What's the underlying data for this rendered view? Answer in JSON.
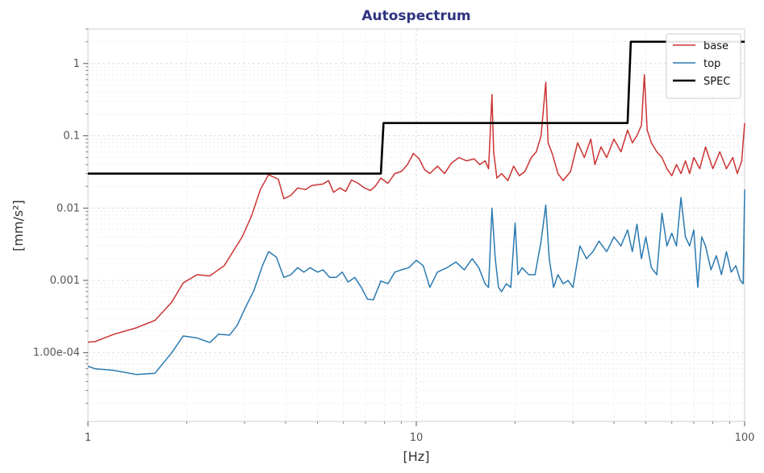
{
  "chart_data": {
    "type": "line",
    "title": "Autospectrum",
    "xlabel": "[Hz]",
    "ylabel": "[mm/s²]",
    "xscale": "log",
    "yscale": "log",
    "xlim": [
      1,
      100
    ],
    "ylim": [
      1.12e-05,
      3.0
    ],
    "grid": true,
    "legend": "top-right",
    "x_ticks": [
      {
        "value": 1,
        "label": "1"
      },
      {
        "value": 10,
        "label": "10"
      },
      {
        "value": 100,
        "label": "100"
      }
    ],
    "y_ticks": [
      {
        "value": 1,
        "label": "1"
      },
      {
        "value": 0.1,
        "label": "0.1"
      },
      {
        "value": 0.01,
        "label": "0.01"
      },
      {
        "value": 0.001,
        "label": "0.001"
      },
      {
        "value": 0.0001,
        "label": "1.00e-04"
      }
    ],
    "series": [
      {
        "name": "base",
        "color": "#cc3333",
        "points": [
          [
            1.0,
            0.00014
          ],
          [
            1.05,
            0.000142
          ],
          [
            1.2,
            0.00018
          ],
          [
            1.4,
            0.00022
          ],
          [
            1.6,
            0.00028
          ],
          [
            1.8,
            0.0005
          ],
          [
            1.95,
            0.00092
          ],
          [
            2.15,
            0.0012
          ],
          [
            2.35,
            0.00115
          ],
          [
            2.6,
            0.0016
          ],
          [
            2.75,
            0.0024
          ],
          [
            2.95,
            0.004
          ],
          [
            3.15,
            0.0078
          ],
          [
            3.35,
            0.018
          ],
          [
            3.55,
            0.029
          ],
          [
            3.8,
            0.025
          ],
          [
            3.95,
            0.0135
          ],
          [
            4.15,
            0.015
          ],
          [
            4.35,
            0.019
          ],
          [
            4.6,
            0.018
          ],
          [
            4.8,
            0.0205
          ],
          [
            5.0,
            0.021
          ],
          [
            5.2,
            0.0215
          ],
          [
            5.4,
            0.024
          ],
          [
            5.6,
            0.0165
          ],
          [
            5.85,
            0.019
          ],
          [
            6.1,
            0.017
          ],
          [
            6.35,
            0.0245
          ],
          [
            6.65,
            0.022
          ],
          [
            6.95,
            0.019
          ],
          [
            7.25,
            0.0175
          ],
          [
            7.5,
            0.02
          ],
          [
            7.8,
            0.026
          ],
          [
            8.2,
            0.022
          ],
          [
            8.6,
            0.03
          ],
          [
            9.0,
            0.032
          ],
          [
            9.4,
            0.04
          ],
          [
            9.8,
            0.057
          ],
          [
            10.2,
            0.048
          ],
          [
            10.6,
            0.034
          ],
          [
            11.0,
            0.03
          ],
          [
            11.6,
            0.038
          ],
          [
            12.2,
            0.03
          ],
          [
            12.8,
            0.042
          ],
          [
            13.5,
            0.05
          ],
          [
            14.2,
            0.045
          ],
          [
            15.0,
            0.048
          ],
          [
            15.6,
            0.04
          ],
          [
            16.2,
            0.045
          ],
          [
            16.6,
            0.035
          ],
          [
            17.0,
            0.37
          ],
          [
            17.2,
            0.06
          ],
          [
            17.6,
            0.026
          ],
          [
            18.2,
            0.03
          ],
          [
            19.0,
            0.024
          ],
          [
            19.8,
            0.038
          ],
          [
            20.6,
            0.028
          ],
          [
            21.4,
            0.032
          ],
          [
            22.4,
            0.05
          ],
          [
            23.2,
            0.06
          ],
          [
            24.0,
            0.1
          ],
          [
            24.8,
            0.55
          ],
          [
            25.2,
            0.08
          ],
          [
            26.0,
            0.055
          ],
          [
            27.0,
            0.03
          ],
          [
            28.0,
            0.024
          ],
          [
            29.5,
            0.032
          ],
          [
            31.0,
            0.08
          ],
          [
            32.5,
            0.05
          ],
          [
            34.0,
            0.09
          ],
          [
            35.0,
            0.04
          ],
          [
            36.5,
            0.07
          ],
          [
            38.0,
            0.05
          ],
          [
            40.0,
            0.09
          ],
          [
            42.0,
            0.06
          ],
          [
            44.0,
            0.12
          ],
          [
            45.5,
            0.08
          ],
          [
            47.0,
            0.1
          ],
          [
            48.5,
            0.14
          ],
          [
            49.5,
            0.7
          ],
          [
            50.5,
            0.12
          ],
          [
            52.0,
            0.08
          ],
          [
            54.0,
            0.06
          ],
          [
            56.0,
            0.05
          ],
          [
            58.0,
            0.035
          ],
          [
            60.0,
            0.028
          ],
          [
            62.0,
            0.04
          ],
          [
            64.0,
            0.03
          ],
          [
            66.0,
            0.045
          ],
          [
            68.0,
            0.03
          ],
          [
            70.0,
            0.05
          ],
          [
            73.0,
            0.035
          ],
          [
            76.0,
            0.07
          ],
          [
            80.0,
            0.035
          ],
          [
            84.0,
            0.06
          ],
          [
            88.0,
            0.035
          ],
          [
            92.0,
            0.05
          ],
          [
            95.0,
            0.03
          ],
          [
            98.0,
            0.045
          ],
          [
            100.0,
            0.15
          ]
        ]
      },
      {
        "name": "top",
        "color": "#2a7ab0",
        "points": [
          [
            1.0,
            6.5e-05
          ],
          [
            1.05,
            6e-05
          ],
          [
            1.2,
            5.7e-05
          ],
          [
            1.4,
            5e-05
          ],
          [
            1.6,
            5.2e-05
          ],
          [
            1.8,
            0.0001
          ],
          [
            1.95,
            0.00017
          ],
          [
            2.15,
            0.00016
          ],
          [
            2.35,
            0.000138
          ],
          [
            2.5,
            0.00018
          ],
          [
            2.7,
            0.000175
          ],
          [
            2.85,
            0.00024
          ],
          [
            3.0,
            0.0004
          ],
          [
            3.2,
            0.00072
          ],
          [
            3.4,
            0.0016
          ],
          [
            3.55,
            0.0025
          ],
          [
            3.75,
            0.0021
          ],
          [
            3.95,
            0.0011
          ],
          [
            4.15,
            0.0012
          ],
          [
            4.35,
            0.0015
          ],
          [
            4.55,
            0.0013
          ],
          [
            4.75,
            0.0015
          ],
          [
            5.0,
            0.0013
          ],
          [
            5.2,
            0.0014
          ],
          [
            5.45,
            0.0011
          ],
          [
            5.7,
            0.0011
          ],
          [
            5.95,
            0.0013
          ],
          [
            6.2,
            0.00095
          ],
          [
            6.5,
            0.0011
          ],
          [
            6.8,
            0.0008
          ],
          [
            7.1,
            0.00055
          ],
          [
            7.4,
            0.00054
          ],
          [
            7.8,
            0.00098
          ],
          [
            8.2,
            0.0009
          ],
          [
            8.6,
            0.0013
          ],
          [
            9.0,
            0.0014
          ],
          [
            9.5,
            0.0015
          ],
          [
            10.0,
            0.0019
          ],
          [
            10.5,
            0.0016
          ],
          [
            11.0,
            0.0008
          ],
          [
            11.6,
            0.0013
          ],
          [
            12.4,
            0.0015
          ],
          [
            13.2,
            0.0018
          ],
          [
            14.0,
            0.0014
          ],
          [
            14.8,
            0.002
          ],
          [
            15.5,
            0.0015
          ],
          [
            16.2,
            0.0009
          ],
          [
            16.6,
            0.0008
          ],
          [
            17.0,
            0.01
          ],
          [
            17.4,
            0.002
          ],
          [
            17.8,
            0.0008
          ],
          [
            18.2,
            0.0007
          ],
          [
            18.8,
            0.0009
          ],
          [
            19.4,
            0.0008
          ],
          [
            20.0,
            0.0062
          ],
          [
            20.4,
            0.0012
          ],
          [
            21.0,
            0.0015
          ],
          [
            22.0,
            0.0012
          ],
          [
            23.0,
            0.0012
          ],
          [
            24.0,
            0.0035
          ],
          [
            24.8,
            0.011
          ],
          [
            25.4,
            0.002
          ],
          [
            26.2,
            0.0008
          ],
          [
            27.0,
            0.0012
          ],
          [
            28.0,
            0.0009
          ],
          [
            29.0,
            0.001
          ],
          [
            30.0,
            0.0008
          ],
          [
            31.5,
            0.003
          ],
          [
            33.0,
            0.002
          ],
          [
            34.5,
            0.0025
          ],
          [
            36.0,
            0.0035
          ],
          [
            38.0,
            0.0025
          ],
          [
            40.0,
            0.004
          ],
          [
            42.0,
            0.003
          ],
          [
            44.0,
            0.005
          ],
          [
            45.5,
            0.0025
          ],
          [
            47.0,
            0.006
          ],
          [
            48.5,
            0.002
          ],
          [
            50.0,
            0.004
          ],
          [
            52.0,
            0.0015
          ],
          [
            54.0,
            0.0012
          ],
          [
            56.0,
            0.0085
          ],
          [
            58.0,
            0.003
          ],
          [
            60.0,
            0.0045
          ],
          [
            62.0,
            0.003
          ],
          [
            64.0,
            0.014
          ],
          [
            66.0,
            0.004
          ],
          [
            68.0,
            0.003
          ],
          [
            70.0,
            0.005
          ],
          [
            72.0,
            0.0008
          ],
          [
            74.0,
            0.004
          ],
          [
            76.0,
            0.003
          ],
          [
            79.0,
            0.0014
          ],
          [
            82.0,
            0.0022
          ],
          [
            85.0,
            0.0012
          ],
          [
            88.0,
            0.0025
          ],
          [
            91.0,
            0.0013
          ],
          [
            94.0,
            0.0016
          ],
          [
            97.0,
            0.001
          ],
          [
            99.0,
            0.0009
          ],
          [
            100.0,
            0.018
          ]
        ]
      },
      {
        "name": "SPEC",
        "color": "#000000",
        "points": [
          [
            1.0,
            0.03
          ],
          [
            7.8,
            0.03
          ],
          [
            7.95,
            0.15
          ],
          [
            44.0,
            0.15
          ],
          [
            45.0,
            2.0
          ],
          [
            100.0,
            2.0
          ]
        ]
      }
    ]
  }
}
